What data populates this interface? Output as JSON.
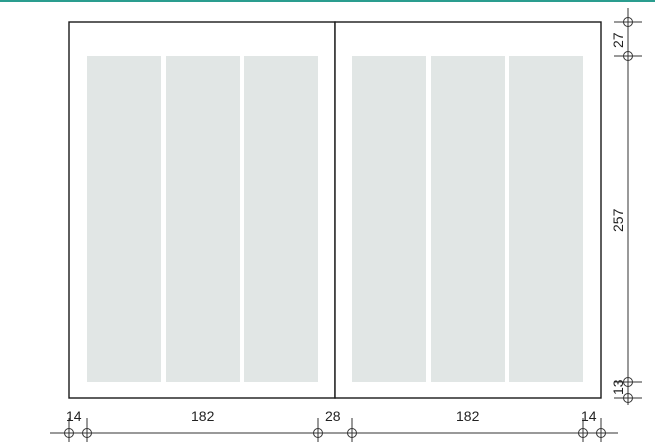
{
  "colors": {
    "accent_bar": "#2a9d8f",
    "page_stroke": "#1a1a1a",
    "column_fill": "#e1e6e5",
    "dimension_line": "#333333"
  },
  "layout_diagram": {
    "pages": [
      "left-page",
      "right-page"
    ],
    "columns_per_page": 3,
    "horizontal_dimensions": {
      "outer_margin_left": "14",
      "text_width_left": "182",
      "gutter": "28",
      "text_width_right": "182",
      "outer_margin_right": "14"
    },
    "vertical_dimensions": {
      "top_margin": "27",
      "text_height": "257",
      "bottom_margin": "13"
    }
  }
}
